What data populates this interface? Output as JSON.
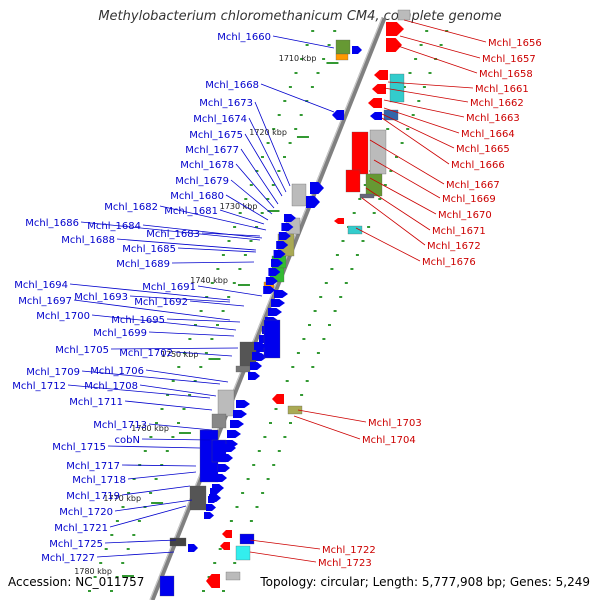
{
  "title": "Methylobacterium chloromethanicum CM4, complete genome",
  "accession": "Accession: NC_011757",
  "topology": "Topology: circular; Length: 5,777,908 bp; Genes: 5,249",
  "colors": {
    "minus_label": "#0000cc",
    "plus_label": "#cc0000",
    "backbone": "#808080",
    "tick": "#339933"
  },
  "ticks": [
    "1710 kbp",
    "1720 kbp",
    "1730 kbp",
    "1740 kbp",
    "1750 kbp",
    "1760 kbp",
    "1770 kbp",
    "1780 kbp"
  ],
  "left_labels": [
    "Mchl_1660",
    "Mchl_1668",
    "Mchl_1673",
    "Mchl_1674",
    "Mchl_1675",
    "Mchl_1677",
    "Mchl_1678",
    "Mchl_1679",
    "Mchl_1680",
    "Mchl_1682",
    "Mchl_1681",
    "Mchl_1686",
    "Mchl_1684",
    "Mchl_1683",
    "Mchl_1688",
    "Mchl_1685",
    "Mchl_1689",
    "Mchl_1691",
    "Mchl_1694",
    "Mchl_1693",
    "Mchl_1692",
    "Mchl_1697",
    "Mchl_1700",
    "Mchl_1695",
    "Mchl_1699",
    "Mchl_1705",
    "Mchl_1702",
    "Mchl_1709",
    "Mchl_1706",
    "Mchl_1712",
    "Mchl_1708",
    "Mchl_1711",
    "Mchl_1713",
    "cobN",
    "Mchl_1715",
    "Mchl_1717",
    "Mchl_1718",
    "Mchl_1719",
    "Mchl_1720",
    "Mchl_1721",
    "Mchl_1725",
    "Mchl_1727"
  ],
  "right_labels": [
    "Mchl_1656",
    "Mchl_1657",
    "Mchl_1658",
    "Mchl_1661",
    "Mchl_1662",
    "Mchl_1663",
    "Mchl_1664",
    "Mchl_1665",
    "Mchl_1666",
    "Mchl_1667",
    "Mchl_1669",
    "Mchl_1670",
    "Mchl_1671",
    "Mchl_1672",
    "Mchl_1676",
    "Mchl_1703",
    "Mchl_1704",
    "Mchl_1722",
    "Mchl_1723"
  ]
}
